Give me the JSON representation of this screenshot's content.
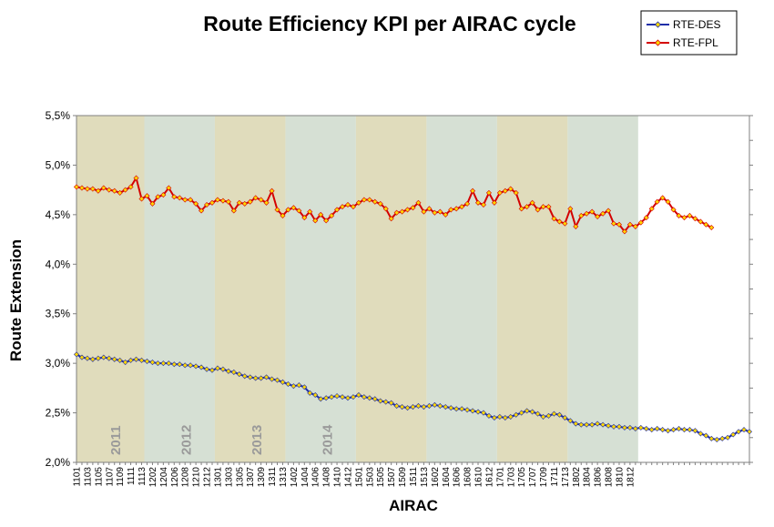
{
  "chart_data": {
    "type": "line",
    "title": "Route Efficiency KPI per AIRAC cycle",
    "xlabel": "AIRAC",
    "ylabel": "Route Extension",
    "ylim": [
      0.02,
      0.055
    ],
    "y_ticks": [
      0.02,
      0.025,
      0.03,
      0.035,
      0.04,
      0.045,
      0.05,
      0.055
    ],
    "y_tick_labels": [
      "2,0%",
      "2,5%",
      "3,0%",
      "3,5%",
      "4,0%",
      "4,5%",
      "5,0%",
      "5,5%"
    ],
    "grid": false,
    "legend_position": "top-right",
    "x_tick_labels": [
      "1101",
      "1103",
      "1105",
      "1107",
      "1109",
      "1111",
      "1113",
      "1202",
      "1204",
      "1206",
      "1208",
      "1210",
      "1212",
      "1301",
      "1303",
      "1305",
      "1307",
      "1309",
      "1311",
      "1313",
      "1402",
      "1404",
      "1406",
      "1408",
      "1410",
      "1412",
      "1501",
      "1503",
      "1505",
      "1507",
      "1509",
      "1511",
      "1513",
      "1602",
      "1604",
      "1606",
      "1608",
      "1610",
      "1612",
      "1701",
      "1703",
      "1705",
      "1707",
      "1709",
      "1711",
      "1713",
      "1802",
      "1804",
      "1806",
      "1808",
      "1810",
      "1812"
    ],
    "year_bands": [
      {
        "label": "2011",
        "start": 0,
        "end": 12,
        "color": "#e0dcbc"
      },
      {
        "label": "2012",
        "start": 13,
        "end": 25,
        "color": "#d6e0d4"
      },
      {
        "label": "2013",
        "start": 26,
        "end": 38,
        "color": "#e0dcbc"
      },
      {
        "label": "2014",
        "start": 39,
        "end": 51,
        "color": "#d6e0d4"
      },
      {
        "label": "",
        "start": 52,
        "end": 64,
        "color": "#e0dcbc"
      },
      {
        "label": "",
        "start": 65,
        "end": 77,
        "color": "#d6e0d4"
      },
      {
        "label": "",
        "start": 78,
        "end": 90,
        "color": "#e0dcbc"
      },
      {
        "label": "",
        "start": 91,
        "end": 103,
        "color": "#d6e0d4"
      }
    ],
    "series": [
      {
        "name": "RTE-DES",
        "line_color": "#1f2ea8",
        "marker_color": "#ffd700",
        "values": [
          0.0309,
          0.0306,
          0.0305,
          0.0304,
          0.0305,
          0.0306,
          0.0305,
          0.0304,
          0.0303,
          0.0301,
          0.0303,
          0.0304,
          0.0303,
          0.0302,
          0.0301,
          0.03,
          0.03,
          0.03,
          0.0299,
          0.0299,
          0.0298,
          0.0298,
          0.0297,
          0.0296,
          0.0294,
          0.0293,
          0.0295,
          0.0294,
          0.0292,
          0.0291,
          0.0289,
          0.0287,
          0.0286,
          0.0285,
          0.0285,
          0.0286,
          0.0284,
          0.0283,
          0.0281,
          0.0279,
          0.0277,
          0.0278,
          0.0276,
          0.027,
          0.0268,
          0.0264,
          0.0265,
          0.0266,
          0.0267,
          0.0266,
          0.0265,
          0.0266,
          0.0268,
          0.0266,
          0.0265,
          0.0264,
          0.0262,
          0.0261,
          0.026,
          0.0257,
          0.0256,
          0.0255,
          0.0256,
          0.0257,
          0.0256,
          0.0257,
          0.0258,
          0.0257,
          0.0256,
          0.0255,
          0.0254,
          0.0254,
          0.0253,
          0.0252,
          0.0251,
          0.025,
          0.0247,
          0.0245,
          0.0246,
          0.0245,
          0.0246,
          0.0248,
          0.025,
          0.0252,
          0.0251,
          0.0249,
          0.0246,
          0.0247,
          0.0249,
          0.0248,
          0.0245,
          0.0242,
          0.0239,
          0.0238,
          0.0238,
          0.0238,
          0.0239,
          0.0238,
          0.0237,
          0.0236,
          0.0236,
          0.0235,
          0.0235,
          0.0234,
          0.0235,
          0.0234,
          0.0233,
          0.0234,
          0.0233,
          0.0232,
          0.0233,
          0.0234,
          0.0233,
          0.0233,
          0.0232,
          0.0229,
          0.0227,
          0.0224,
          0.0223,
          0.0224,
          0.0225,
          0.0228,
          0.0231,
          0.0233,
          0.0231
        ]
      },
      {
        "name": "RTE-FPL",
        "line_color": "#d40000",
        "marker_color": "#ffd700",
        "values": [
          0.0478,
          0.0477,
          0.0476,
          0.0476,
          0.0474,
          0.0477,
          0.0475,
          0.0474,
          0.0472,
          0.0475,
          0.0478,
          0.0487,
          0.0466,
          0.0469,
          0.0461,
          0.0468,
          0.047,
          0.0477,
          0.0468,
          0.0467,
          0.0465,
          0.0465,
          0.0461,
          0.0454,
          0.046,
          0.0462,
          0.0465,
          0.0464,
          0.0463,
          0.0454,
          0.0462,
          0.0461,
          0.0463,
          0.0467,
          0.0465,
          0.0462,
          0.0474,
          0.0455,
          0.0449,
          0.0455,
          0.0457,
          0.0454,
          0.0447,
          0.0453,
          0.0444,
          0.045,
          0.0444,
          0.0449,
          0.0455,
          0.0458,
          0.046,
          0.0458,
          0.0462,
          0.0465,
          0.0465,
          0.0463,
          0.0461,
          0.0456,
          0.0446,
          0.0452,
          0.0453,
          0.0455,
          0.0457,
          0.0462,
          0.0453,
          0.0456,
          0.0452,
          0.0453,
          0.045,
          0.0455,
          0.0456,
          0.0458,
          0.0461,
          0.0474,
          0.0462,
          0.046,
          0.0472,
          0.0462,
          0.0472,
          0.0474,
          0.0476,
          0.0472,
          0.0456,
          0.0458,
          0.0462,
          0.0455,
          0.0458,
          0.0458,
          0.0446,
          0.0443,
          0.0441,
          0.0456,
          0.0438,
          0.0449,
          0.0451,
          0.0453,
          0.0448,
          0.0451,
          0.0454,
          0.0441,
          0.044,
          0.0433,
          0.044,
          0.0438,
          0.0442,
          0.0447,
          0.0456,
          0.0463,
          0.0467,
          0.0463,
          0.0455,
          0.0449,
          0.0447,
          0.0449,
          0.0446,
          0.0443,
          0.044,
          0.0437
        ]
      }
    ]
  }
}
